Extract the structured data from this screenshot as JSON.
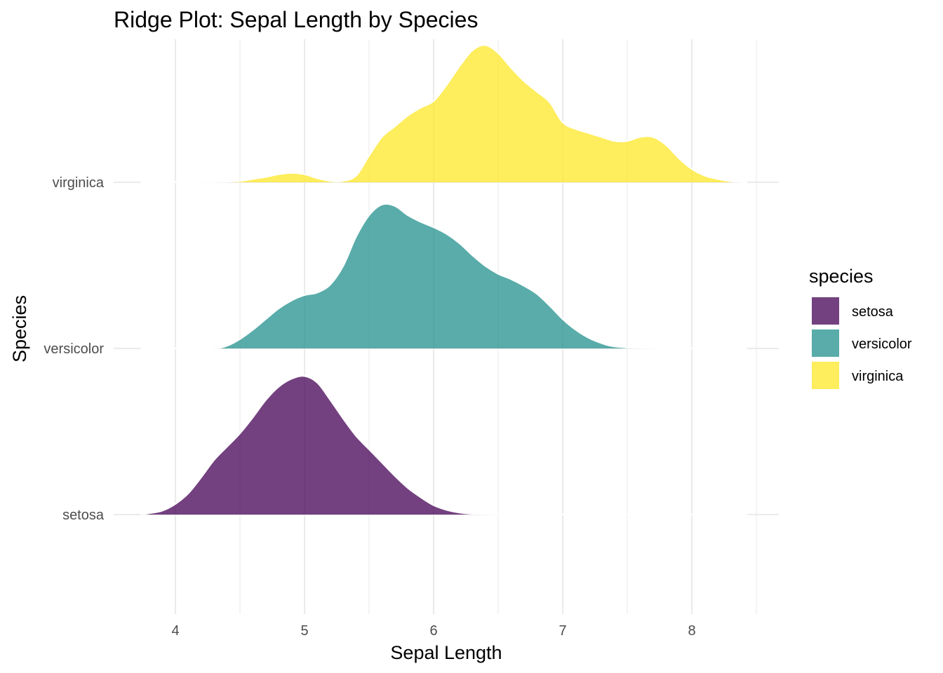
{
  "chart_data": {
    "type": "area",
    "subtype": "ridgeline",
    "title": "Ridge Plot: Sepal Length by Species",
    "xlabel": "Sepal Length",
    "ylabel": "Species",
    "xlim": [
      3.53,
      8.63
    ],
    "x_ticks": [
      4,
      5,
      6,
      7,
      8
    ],
    "x_minor_ticks": [
      4.5,
      5.5,
      6.5,
      7.5,
      8.5
    ],
    "categories": [
      "setosa",
      "versicolor",
      "virginica"
    ],
    "grid": true,
    "legend": {
      "title": "species",
      "position": "right",
      "items": [
        {
          "label": "setosa",
          "color": "#440154"
        },
        {
          "label": "versicolor",
          "color": "#21908C"
        },
        {
          "label": "virginica",
          "color": "#FDE725"
        }
      ]
    },
    "fill_alpha": 0.75,
    "series": [
      {
        "category": "setosa",
        "color": "#440154",
        "x": [
          3.73,
          3.8,
          3.9,
          4.0,
          4.1,
          4.2,
          4.3,
          4.4,
          4.5,
          4.6,
          4.7,
          4.8,
          4.9,
          5.0,
          5.1,
          5.2,
          5.3,
          5.4,
          5.5,
          5.6,
          5.7,
          5.8,
          5.9,
          6.0,
          6.1,
          6.2,
          6.3,
          6.5,
          7.0,
          7.5,
          8.0,
          8.43
        ],
        "density": [
          0.0,
          0.01,
          0.03,
          0.08,
          0.16,
          0.28,
          0.41,
          0.51,
          0.61,
          0.73,
          0.86,
          0.96,
          1.02,
          1.04,
          0.99,
          0.86,
          0.72,
          0.59,
          0.49,
          0.39,
          0.29,
          0.2,
          0.13,
          0.07,
          0.035,
          0.015,
          0.006,
          0.002,
          0.0,
          0.0,
          0.0,
          0.0
        ]
      },
      {
        "category": "versicolor",
        "color": "#21908C",
        "x": [
          3.73,
          4.0,
          4.3,
          4.4,
          4.5,
          4.6,
          4.7,
          4.8,
          4.9,
          5.0,
          5.1,
          5.2,
          5.3,
          5.4,
          5.5,
          5.6,
          5.7,
          5.8,
          5.9,
          6.0,
          6.1,
          6.2,
          6.3,
          6.4,
          6.5,
          6.6,
          6.7,
          6.8,
          6.9,
          7.0,
          7.1,
          7.2,
          7.3,
          7.4,
          7.6,
          8.0,
          8.43
        ],
        "density": [
          0.0,
          0.0,
          0.002,
          0.02,
          0.07,
          0.14,
          0.22,
          0.3,
          0.36,
          0.4,
          0.42,
          0.48,
          0.62,
          0.84,
          1.0,
          1.08,
          1.07,
          1.0,
          0.95,
          0.91,
          0.86,
          0.79,
          0.7,
          0.62,
          0.56,
          0.52,
          0.47,
          0.41,
          0.32,
          0.22,
          0.14,
          0.08,
          0.04,
          0.015,
          0.003,
          0.0,
          0.0
        ]
      },
      {
        "category": "virginica",
        "color": "#FDE725",
        "x": [
          3.73,
          4.3,
          4.5,
          4.6,
          4.7,
          4.8,
          4.9,
          5.0,
          5.1,
          5.2,
          5.3,
          5.4,
          5.5,
          5.6,
          5.7,
          5.8,
          5.9,
          6.0,
          6.1,
          6.2,
          6.3,
          6.4,
          6.5,
          6.6,
          6.7,
          6.8,
          6.9,
          7.0,
          7.1,
          7.2,
          7.3,
          7.4,
          7.5,
          7.6,
          7.7,
          7.8,
          7.9,
          8.0,
          8.1,
          8.2,
          8.3,
          8.43
        ],
        "density": [
          0.0,
          0.002,
          0.01,
          0.025,
          0.04,
          0.06,
          0.07,
          0.06,
          0.03,
          0.01,
          0.01,
          0.05,
          0.2,
          0.34,
          0.42,
          0.5,
          0.56,
          0.61,
          0.73,
          0.87,
          0.99,
          1.03,
          0.97,
          0.86,
          0.76,
          0.68,
          0.6,
          0.45,
          0.4,
          0.37,
          0.34,
          0.31,
          0.31,
          0.34,
          0.34,
          0.28,
          0.18,
          0.1,
          0.05,
          0.025,
          0.008,
          0.0
        ]
      }
    ]
  }
}
